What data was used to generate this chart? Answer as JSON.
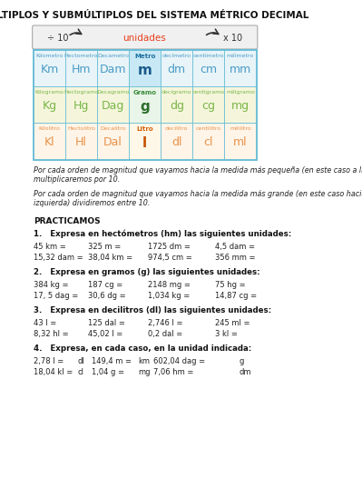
{
  "title": "MÚLTIPLOS Y SUBMÚLTIPLOS DEL SISTEMA MÉTRICO DECIMAL",
  "arrow_left_label": "÷ 10",
  "arrow_right_label": "x 10",
  "center_label": "unidades",
  "table": {
    "row1_small": [
      "Kilometro",
      "Hectometro",
      "Decametro",
      "Metro",
      "decímetro",
      "centímetro",
      "milímetro"
    ],
    "row1_big": [
      "Km",
      "Hm",
      "Dam",
      "m",
      "dm",
      "cm",
      "mm"
    ],
    "row2_small": [
      "Kilogramo",
      "Hectogramo",
      "Decagramo",
      "Gramo",
      "decigramo",
      "centigramo",
      "miligramo"
    ],
    "row2_big": [
      "Kg",
      "Hg",
      "Dag",
      "g",
      "dg",
      "cg",
      "mg"
    ],
    "row3_small": [
      "Kilolitro",
      "Hectolitro",
      "Decalitro",
      "Litro",
      "decilitro",
      "centilitro",
      "mililitro"
    ],
    "row3_big": [
      "Kl",
      "Hl",
      "Dal",
      "l",
      "dl",
      "cl",
      "ml"
    ],
    "row1_bg": [
      "#e8f4f8",
      "#e8f4f8",
      "#e8f4f8",
      "#c8e8f5",
      "#e8f4f8",
      "#e8f4f8",
      "#e8f4f8"
    ],
    "row2_bg": [
      "#f5f5dc",
      "#f5f5dc",
      "#f5f5dc",
      "#e8f5e8",
      "#f5f5dc",
      "#f5f5dc",
      "#f5f5dc"
    ],
    "row3_bg": [
      "#fef5e8",
      "#fef5e8",
      "#fef5e8",
      "#fff8e8",
      "#fef5e8",
      "#fef5e8",
      "#fef5e8"
    ],
    "row1_color_small": [
      "#4a9cc7",
      "#4a9cc7",
      "#4a9cc7",
      "#1a6fa0",
      "#4a9cc7",
      "#4a9cc7",
      "#4a9cc7"
    ],
    "row1_color_big": [
      "#4a9cc7",
      "#4a9cc7",
      "#4a9cc7",
      "#1a5a8a",
      "#4a9cc7",
      "#4a9cc7",
      "#4a9cc7"
    ],
    "row2_color_small": [
      "#7ab648",
      "#7ab648",
      "#7ab648",
      "#3d8c3d",
      "#7ab648",
      "#7ab648",
      "#7ab648"
    ],
    "row2_color_big": [
      "#7ab648",
      "#7ab648",
      "#7ab648",
      "#2d6e2d",
      "#7ab648",
      "#7ab648",
      "#7ab648"
    ],
    "row3_color_small": [
      "#e8924a",
      "#e8924a",
      "#e8924a",
      "#d4600a",
      "#e8924a",
      "#e8924a",
      "#e8924a"
    ],
    "row3_color_big": [
      "#e8924a",
      "#e8924a",
      "#e8924a",
      "#c45000",
      "#e8924a",
      "#e8924a",
      "#e8924a"
    ]
  },
  "para1": "Por cada orden de magnitud que vayamos hacia la medida más pequeña (en este caso a la derecha)\nmultiplicaremos por 10.",
  "para2": "Por cada orden de magnitud que vayamos hacia la medida más grande (en este caso hacia la\nizquierda) dividiremos entre 10.",
  "section_title": "PRACTICAMOS",
  "q1_title": "1.   Expresa en hectómetros (hm) las siguientes unidades:",
  "q1_row1": [
    "45 km =",
    "325 m =",
    "1725 dm =",
    "4,5 dam ="
  ],
  "q1_row2": [
    "15,32 dam =",
    "38,04 km =",
    "974,5 cm =",
    "356 mm ="
  ],
  "q2_title": "2.   Expresa en gramos (g) las siguientes unidades:",
  "q2_row1": [
    "384 kg =",
    "187 cg =",
    "2148 mg =",
    "75 hg ="
  ],
  "q2_row2": [
    "17, 5 dag =",
    "30,6 dg =",
    "1,034 kg =",
    "14,87 cg ="
  ],
  "q3_title": "3.   Expresa en decilitros (dl) las siguientes unidades:",
  "q3_row1": [
    "43 l =",
    "125 dal =",
    "2,746 l =",
    "245 ml ="
  ],
  "q3_row2": [
    "8,32 hl =",
    "45,02 l =",
    "0,2 dal =",
    "3 kl ="
  ],
  "q4_title": "4.   Expresa, en cada caso, en la unidad indicada:",
  "q4_row1": [
    "2,78 l =",
    "dl",
    "149,4 m =",
    "km",
    "602,04 dag =",
    "",
    "g"
  ],
  "q4_row2": [
    "18,04 kl =",
    "cl",
    "1,04 g =",
    "mg",
    "7,06 hm =",
    "",
    "dm"
  ],
  "bg_color": "#ffffff",
  "table_border": "#5bb8d4",
  "text_color": "#222222"
}
